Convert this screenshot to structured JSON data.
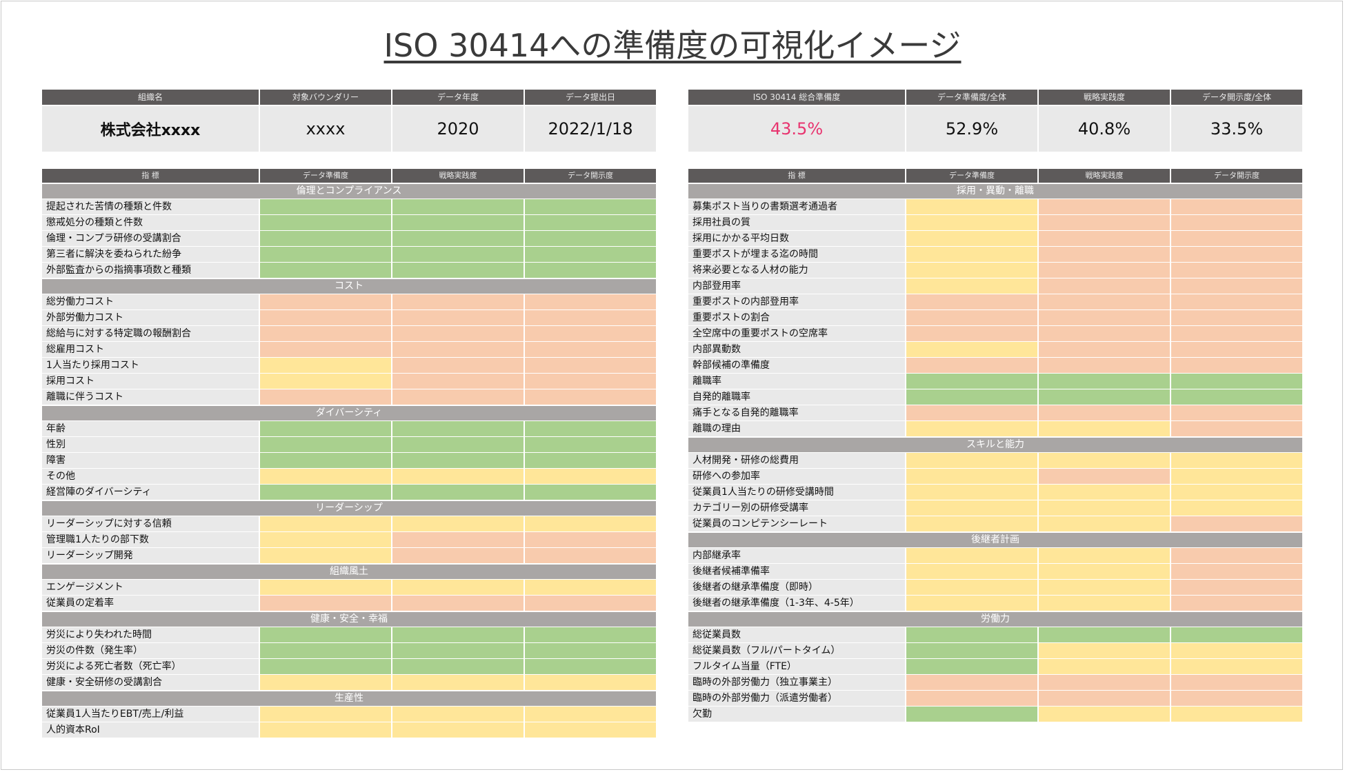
{
  "title": "ISO 30414への準備度の可視化イメージ",
  "colors": {
    "green": "#a9d08e",
    "yellow": "#ffe699",
    "orange": "#f8cbad",
    "header": "#5d5a5a",
    "section": "#a9a6a5",
    "highlight": "#e8346f"
  },
  "left": {
    "info_headers": [
      "組織名",
      "対象バウンダリー",
      "データ年度",
      "データ提出日"
    ],
    "info_values": [
      "株式会社xxxx",
      "xxxx",
      "2020",
      "2022/1/18"
    ],
    "table_headers": [
      "指 標",
      "データ準備度",
      "戦略実践度",
      "データ開示度"
    ],
    "sections": [
      {
        "name": "倫理とコンプライアンス",
        "rows": [
          {
            "label": "提起された苦情の種類と件数",
            "cells": [
              "g",
              "g",
              "g"
            ]
          },
          {
            "label": "懲戒処分の種類と件数",
            "cells": [
              "g",
              "g",
              "g"
            ]
          },
          {
            "label": "倫理・コンプラ研修の受講割合",
            "cells": [
              "g",
              "g",
              "g"
            ]
          },
          {
            "label": "第三者に解決を委ねられた紛争",
            "cells": [
              "g",
              "g",
              "g"
            ]
          },
          {
            "label": "外部監査からの指摘事項数と種類",
            "cells": [
              "g",
              "g",
              "g"
            ]
          }
        ]
      },
      {
        "name": "コスト",
        "rows": [
          {
            "label": "総労働力コスト",
            "cells": [
              "o",
              "o",
              "o"
            ]
          },
          {
            "label": "外部労働力コスト",
            "cells": [
              "o",
              "o",
              "o"
            ]
          },
          {
            "label": "総給与に対する特定職の報酬割合",
            "cells": [
              "o",
              "o",
              "o"
            ]
          },
          {
            "label": "総雇用コスト",
            "cells": [
              "o",
              "o",
              "o"
            ]
          },
          {
            "label": "1人当たり採用コスト",
            "cells": [
              "y",
              "o",
              "o"
            ]
          },
          {
            "label": "採用コスト",
            "cells": [
              "y",
              "o",
              "o"
            ]
          },
          {
            "label": "離職に伴うコスト",
            "cells": [
              "o",
              "o",
              "o"
            ]
          }
        ]
      },
      {
        "name": "ダイバーシティ",
        "rows": [
          {
            "label": "年齢",
            "cells": [
              "g",
              "g",
              "g"
            ]
          },
          {
            "label": "性別",
            "cells": [
              "g",
              "g",
              "g"
            ]
          },
          {
            "label": "障害",
            "cells": [
              "g",
              "g",
              "g"
            ]
          },
          {
            "label": "その他",
            "cells": [
              "y",
              "y",
              "y"
            ]
          },
          {
            "label": "経営陣のダイバーシティ",
            "cells": [
              "g",
              "g",
              "g"
            ]
          }
        ]
      },
      {
        "name": "リーダーシップ",
        "rows": [
          {
            "label": "リーダーシップに対する信頼",
            "cells": [
              "y",
              "y",
              "y"
            ]
          },
          {
            "label": "管理職1人たりの部下数",
            "cells": [
              "y",
              "o",
              "o"
            ]
          },
          {
            "label": "リーダーシップ開発",
            "cells": [
              "y",
              "o",
              "o"
            ]
          }
        ]
      },
      {
        "name": "組織風土",
        "rows": [
          {
            "label": "エンゲージメント",
            "cells": [
              "y",
              "y",
              "y"
            ]
          },
          {
            "label": "従業員の定着率",
            "cells": [
              "o",
              "o",
              "o"
            ]
          }
        ]
      },
      {
        "name": "健康・安全・幸福",
        "rows": [
          {
            "label": "労災により失われた時間",
            "cells": [
              "g",
              "g",
              "g"
            ]
          },
          {
            "label": "労災の件数（発生率）",
            "cells": [
              "g",
              "g",
              "g"
            ]
          },
          {
            "label": "労災による死亡者数（死亡率）",
            "cells": [
              "g",
              "g",
              "g"
            ]
          },
          {
            "label": "健康・安全研修の受講割合",
            "cells": [
              "y",
              "y",
              "y"
            ]
          }
        ]
      },
      {
        "name": "生産性",
        "rows": [
          {
            "label": "従業員1人当たりEBT/売上/利益",
            "cells": [
              "y",
              "y",
              "y"
            ]
          },
          {
            "label": "人的資本RoI",
            "cells": [
              "y",
              "y",
              "y"
            ]
          }
        ]
      }
    ]
  },
  "right": {
    "info_headers": [
      "ISO 30414 総合準備度",
      "データ準備度/全体",
      "戦略実践度",
      "データ開示度/全体"
    ],
    "info_values": [
      "43.5%",
      "52.9%",
      "40.8%",
      "33.5%"
    ],
    "table_headers": [
      "指 標",
      "データ準備度",
      "戦略実践度",
      "データ開示度"
    ],
    "sections": [
      {
        "name": "採用・異動・離職",
        "rows": [
          {
            "label": "募集ポスト当りの書類選考通過者",
            "cells": [
              "y",
              "o",
              "o"
            ]
          },
          {
            "label": "採用社員の質",
            "cells": [
              "y",
              "o",
              "o"
            ]
          },
          {
            "label": "採用にかかる平均日数",
            "cells": [
              "y",
              "o",
              "o"
            ]
          },
          {
            "label": "重要ポストが埋まる迄の時間",
            "cells": [
              "y",
              "o",
              "o"
            ]
          },
          {
            "label": "将来必要となる人材の能力",
            "cells": [
              "y",
              "o",
              "o"
            ]
          },
          {
            "label": "内部登用率",
            "cells": [
              "y",
              "o",
              "o"
            ]
          },
          {
            "label": "重要ポストの内部登用率",
            "cells": [
              "o",
              "o",
              "o"
            ]
          },
          {
            "label": "重要ポストの割合",
            "cells": [
              "o",
              "o",
              "o"
            ]
          },
          {
            "label": "全空席中の重要ポストの空席率",
            "cells": [
              "o",
              "o",
              "o"
            ]
          },
          {
            "label": "内部異動数",
            "cells": [
              "y",
              "o",
              "o"
            ]
          },
          {
            "label": "幹部候補の準備度",
            "cells": [
              "o",
              "o",
              "o"
            ]
          },
          {
            "label": "離職率",
            "cells": [
              "g",
              "g",
              "g"
            ]
          },
          {
            "label": "自発的離職率",
            "cells": [
              "g",
              "g",
              "g"
            ]
          },
          {
            "label": "痛手となる自発的離職率",
            "cells": [
              "o",
              "o",
              "o"
            ]
          },
          {
            "label": "離職の理由",
            "cells": [
              "y",
              "y",
              "o"
            ]
          }
        ]
      },
      {
        "name": "スキルと能力",
        "rows": [
          {
            "label": "人材開発・研修の総費用",
            "cells": [
              "y",
              "y",
              "y"
            ]
          },
          {
            "label": "研修への参加率",
            "cells": [
              "y",
              "o",
              "y"
            ]
          },
          {
            "label": "従業員1人当たりの研修受講時間",
            "cells": [
              "y",
              "y",
              "y"
            ]
          },
          {
            "label": "カテゴリー別の研修受講率",
            "cells": [
              "y",
              "y",
              "y"
            ]
          },
          {
            "label": "従業員のコンピテンシーレート",
            "cells": [
              "y",
              "y",
              "o"
            ]
          }
        ]
      },
      {
        "name": "後継者計画",
        "rows": [
          {
            "label": "内部継承率",
            "cells": [
              "y",
              "y",
              "o"
            ]
          },
          {
            "label": "後継者候補準備率",
            "cells": [
              "y",
              "y",
              "o"
            ]
          },
          {
            "label": "後継者の継承準備度（即時）",
            "cells": [
              "y",
              "y",
              "o"
            ]
          },
          {
            "label": "後継者の継承準備度（1-3年、4-5年）",
            "cells": [
              "y",
              "y",
              "o"
            ]
          }
        ]
      },
      {
        "name": "労働力",
        "rows": [
          {
            "label": "総従業員数",
            "cells": [
              "g",
              "g",
              "g"
            ]
          },
          {
            "label": "総従業員数（フル/パートタイム）",
            "cells": [
              "g",
              "y",
              "y"
            ]
          },
          {
            "label": "フルタイム当量（FTE）",
            "cells": [
              "g",
              "y",
              "y"
            ]
          },
          {
            "label": "臨時の外部労働力（独立事業主）",
            "cells": [
              "o",
              "o",
              "o"
            ]
          },
          {
            "label": "臨時の外部労働力（派遣労働者）",
            "cells": [
              "o",
              "o",
              "o"
            ]
          },
          {
            "label": "欠勤",
            "cells": [
              "g",
              "y",
              "y"
            ]
          }
        ]
      }
    ]
  }
}
